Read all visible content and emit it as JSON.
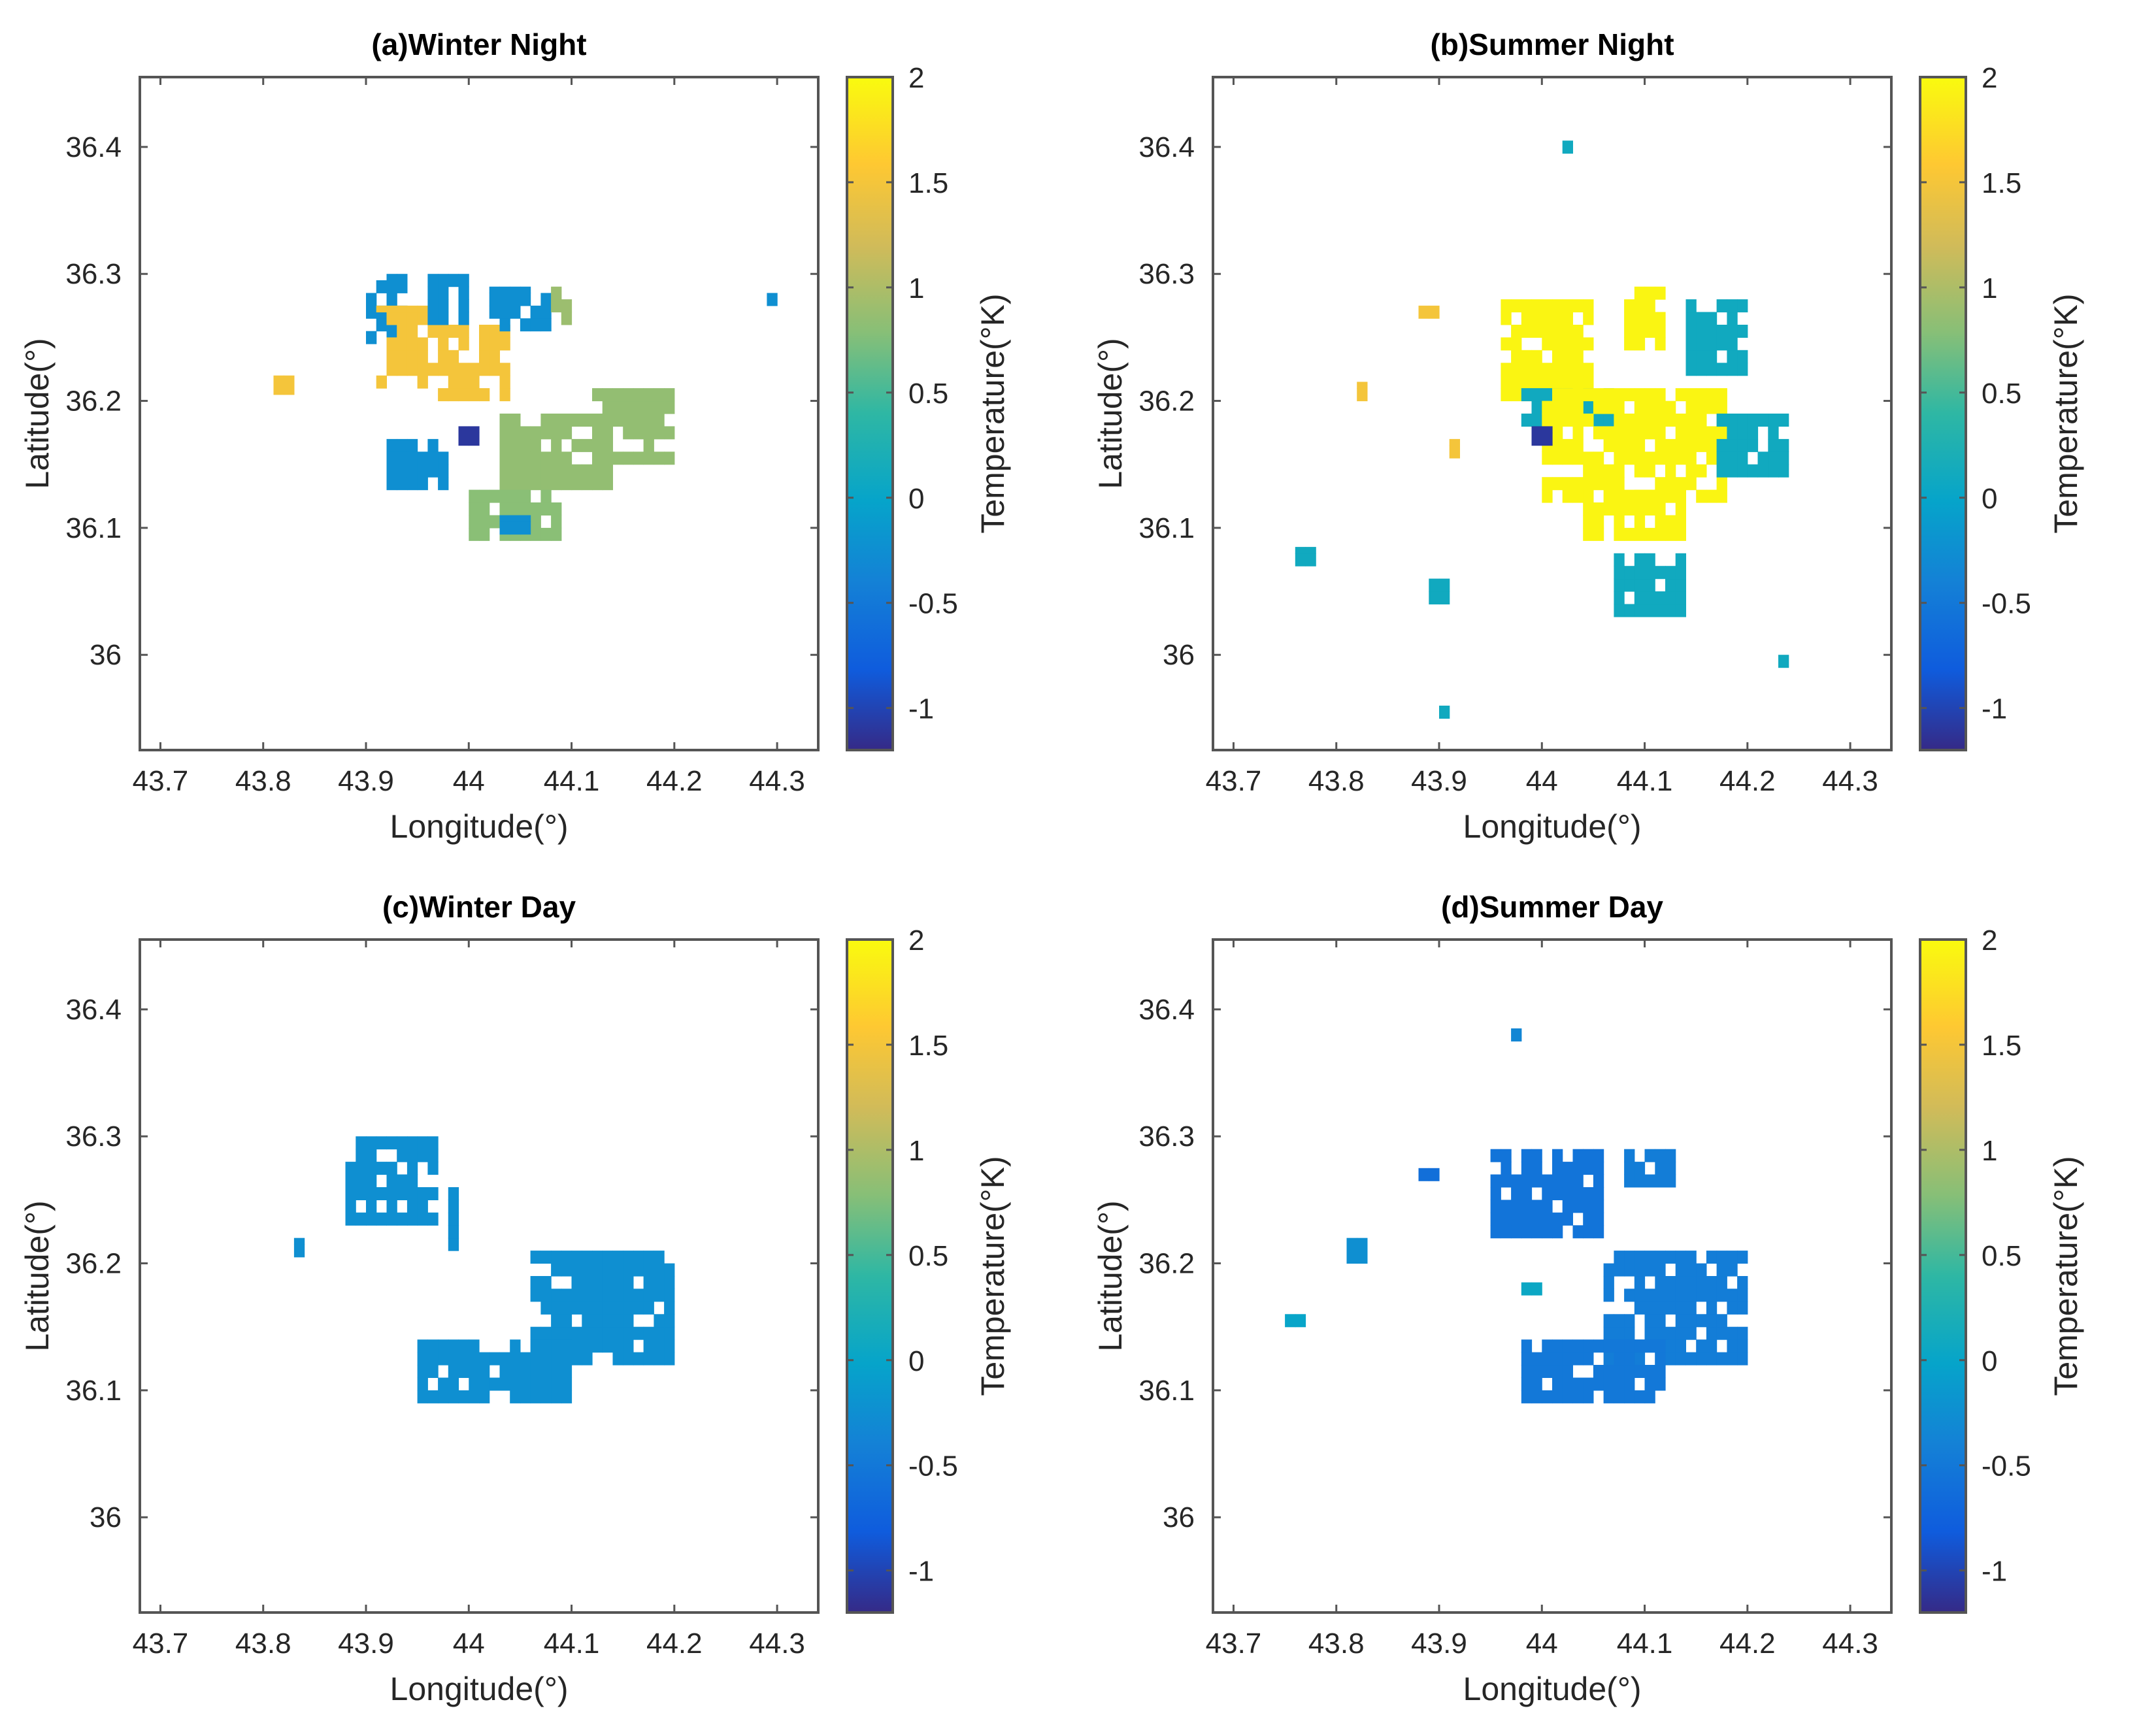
{
  "chart_data": [
    {
      "type": "heatmap",
      "title": "(a)Winter Night",
      "xlabel": "Longitude(°)",
      "ylabel": "Latitude(°)",
      "colorbar_label": "Temperature(°K)",
      "xlim": [
        43.68,
        44.34
      ],
      "ylim": [
        35.925,
        36.455
      ],
      "xticks": [
        "43.7",
        "43.8",
        "43.9",
        "44",
        "44.1",
        "44.2",
        "44.3"
      ],
      "yticks": [
        "36",
        "36.1",
        "36.2",
        "36.3",
        "36.4"
      ],
      "colorbar_range": [
        -1.2,
        2
      ],
      "colorbar_ticks": [
        "-1",
        "-0.5",
        "0",
        "0.5",
        "1",
        "1.5",
        "2"
      ],
      "clusters": [
        {
          "lon": [
            43.9,
            43.94
          ],
          "lat": [
            36.245,
            36.3
          ],
          "value": -0.25
        },
        {
          "lon": [
            43.91,
            43.97
          ],
          "lat": [
            36.21,
            36.275
          ],
          "value": 1.5
        },
        {
          "lon": [
            43.97,
            44.04
          ],
          "lat": [
            36.2,
            36.26
          ],
          "value": 1.5
        },
        {
          "lon": [
            43.96,
            44.0
          ],
          "lat": [
            36.26,
            36.3
          ],
          "value": -0.25
        },
        {
          "lon": [
            44.02,
            44.08
          ],
          "lat": [
            36.255,
            36.29
          ],
          "value": -0.25
        },
        {
          "lon": [
            44.08,
            44.1
          ],
          "lat": [
            36.26,
            36.29
          ],
          "value": 0.9
        },
        {
          "lon": [
            43.81,
            43.83
          ],
          "lat": [
            36.205,
            36.22
          ],
          "value": 1.5
        },
        {
          "lon": [
            43.92,
            43.98
          ],
          "lat": [
            36.13,
            36.17
          ],
          "value": -0.25
        },
        {
          "lon": [
            43.99,
            44.01
          ],
          "lat": [
            36.165,
            36.18
          ],
          "value": -1.1
        },
        {
          "lon": [
            44.03,
            44.14
          ],
          "lat": [
            36.13,
            36.19
          ],
          "value": 0.85
        },
        {
          "lon": [
            44.12,
            44.2
          ],
          "lat": [
            36.15,
            36.21
          ],
          "value": 0.85
        },
        {
          "lon": [
            44.0,
            44.09
          ],
          "lat": [
            36.09,
            36.13
          ],
          "value": 0.8
        },
        {
          "lon": [
            44.03,
            44.06
          ],
          "lat": [
            36.095,
            36.11
          ],
          "value": -0.25
        },
        {
          "lon": [
            44.29,
            44.3
          ],
          "lat": [
            36.275,
            36.285
          ],
          "value": -0.25
        }
      ]
    },
    {
      "type": "heatmap",
      "title": "(b)Summer Night",
      "xlabel": "Longitude(°)",
      "ylabel": "Latitude(°)",
      "colorbar_label": "Temperature(°K)",
      "xlim": [
        43.68,
        44.34
      ],
      "ylim": [
        35.925,
        36.455
      ],
      "xticks": [
        "43.7",
        "43.8",
        "43.9",
        "44",
        "44.1",
        "44.2",
        "44.3"
      ],
      "yticks": [
        "36",
        "36.1",
        "36.2",
        "36.3",
        "36.4"
      ],
      "colorbar_range": [
        -1.2,
        2
      ],
      "colorbar_ticks": [
        "-1",
        "-0.5",
        "0",
        "0.5",
        "1",
        "1.5",
        "2"
      ],
      "clusters": [
        {
          "lon": [
            43.96,
            44.05
          ],
          "lat": [
            36.2,
            36.28
          ],
          "value": 1.95
        },
        {
          "lon": [
            44.08,
            44.12
          ],
          "lat": [
            36.24,
            36.29
          ],
          "value": 1.95
        },
        {
          "lon": [
            43.97,
            44.07
          ],
          "lat": [
            36.18,
            36.21
          ],
          "value": 0.1
        },
        {
          "lon": [
            44.0,
            44.18
          ],
          "lat": [
            36.12,
            36.21
          ],
          "value": 1.95
        },
        {
          "lon": [
            44.04,
            44.14
          ],
          "lat": [
            36.09,
            36.13
          ],
          "value": 1.95
        },
        {
          "lon": [
            44.14,
            44.2
          ],
          "lat": [
            36.22,
            36.28
          ],
          "value": 0.1
        },
        {
          "lon": [
            44.17,
            44.24
          ],
          "lat": [
            36.14,
            36.19
          ],
          "value": 0.1
        },
        {
          "lon": [
            43.99,
            44.01
          ],
          "lat": [
            36.165,
            36.18
          ],
          "value": -1.1
        },
        {
          "lon": [
            43.88,
            43.9
          ],
          "lat": [
            36.265,
            36.275
          ],
          "value": 1.5
        },
        {
          "lon": [
            43.82,
            43.83
          ],
          "lat": [
            36.2,
            36.215
          ],
          "value": 1.5
        },
        {
          "lon": [
            43.91,
            43.92
          ],
          "lat": [
            36.155,
            36.17
          ],
          "value": 1.5
        },
        {
          "lon": [
            43.76,
            43.78
          ],
          "lat": [
            36.07,
            36.085
          ],
          "value": 0.1
        },
        {
          "lon": [
            43.89,
            43.91
          ],
          "lat": [
            36.04,
            36.06
          ],
          "value": 0.1
        },
        {
          "lon": [
            44.07,
            44.14
          ],
          "lat": [
            36.03,
            36.08
          ],
          "value": 0.1
        },
        {
          "lon": [
            43.9,
            43.91
          ],
          "lat": [
            35.95,
            35.96
          ],
          "value": 0.1
        },
        {
          "lon": [
            44.02,
            44.03
          ],
          "lat": [
            36.395,
            36.405
          ],
          "value": 0.1
        },
        {
          "lon": [
            44.23,
            44.24
          ],
          "lat": [
            35.99,
            36.0
          ],
          "value": 0.1
        }
      ]
    },
    {
      "type": "heatmap",
      "title": "(c)Winter Day",
      "xlabel": "Longitude(°)",
      "ylabel": "Latitude(°)",
      "colorbar_label": "Temperature(°K)",
      "xlim": [
        43.68,
        44.34
      ],
      "ylim": [
        35.925,
        36.455
      ],
      "xticks": [
        "43.7",
        "43.8",
        "43.9",
        "44",
        "44.1",
        "44.2",
        "44.3"
      ],
      "yticks": [
        "36",
        "36.1",
        "36.2",
        "36.3",
        "36.4"
      ],
      "colorbar_range": [
        -1.2,
        2
      ],
      "colorbar_ticks": [
        "-1",
        "-0.5",
        "0",
        "0.5",
        "1",
        "1.5",
        "2"
      ],
      "clusters": [
        {
          "lon": [
            43.88,
            43.97
          ],
          "lat": [
            36.23,
            36.3
          ],
          "value": -0.25
        },
        {
          "lon": [
            44.06,
            44.2
          ],
          "lat": [
            36.12,
            36.21
          ],
          "value": -0.25
        },
        {
          "lon": [
            43.95,
            44.1
          ],
          "lat": [
            36.09,
            36.14
          ],
          "value": -0.25
        },
        {
          "lon": [
            43.83,
            43.84
          ],
          "lat": [
            36.205,
            36.22
          ],
          "value": -0.25
        },
        {
          "lon": [
            43.98,
            43.99
          ],
          "lat": [
            36.21,
            36.26
          ],
          "value": -0.25
        }
      ]
    },
    {
      "type": "heatmap",
      "title": "(d)Summer Day",
      "xlabel": "Longitude(°)",
      "ylabel": "Latitude(°)",
      "colorbar_label": "Temperature(°K)",
      "xlim": [
        43.68,
        44.34
      ],
      "ylim": [
        35.925,
        36.455
      ],
      "xticks": [
        "43.7",
        "43.8",
        "43.9",
        "44",
        "44.1",
        "44.2",
        "44.3"
      ],
      "yticks": [
        "36",
        "36.1",
        "36.2",
        "36.3",
        "36.4"
      ],
      "colorbar_range": [
        -1.2,
        2
      ],
      "colorbar_ticks": [
        "-1",
        "-0.5",
        "0",
        "0.5",
        "1",
        "1.5",
        "2"
      ],
      "clusters": [
        {
          "lon": [
            43.95,
            44.06
          ],
          "lat": [
            36.22,
            36.29
          ],
          "value": -0.55
        },
        {
          "lon": [
            44.08,
            44.13
          ],
          "lat": [
            36.26,
            36.29
          ],
          "value": -0.45
        },
        {
          "lon": [
            44.06,
            44.2
          ],
          "lat": [
            36.12,
            36.21
          ],
          "value": -0.45
        },
        {
          "lon": [
            43.98,
            44.12
          ],
          "lat": [
            36.09,
            36.14
          ],
          "value": -0.5
        },
        {
          "lon": [
            43.98,
            44.0
          ],
          "lat": [
            36.175,
            36.185
          ],
          "value": 0.05
        },
        {
          "lon": [
            43.75,
            43.77
          ],
          "lat": [
            36.15,
            36.16
          ],
          "value": 0.0
        },
        {
          "lon": [
            43.81,
            43.83
          ],
          "lat": [
            36.2,
            36.22
          ],
          "value": -0.25
        },
        {
          "lon": [
            43.88,
            43.9
          ],
          "lat": [
            36.265,
            36.275
          ],
          "value": -0.6
        },
        {
          "lon": [
            43.97,
            43.98
          ],
          "lat": [
            36.375,
            36.385
          ],
          "value": -0.35
        }
      ]
    }
  ]
}
